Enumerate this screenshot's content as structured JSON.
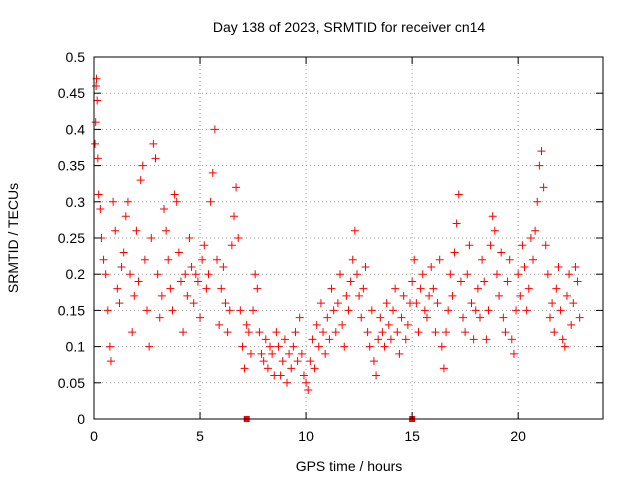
{
  "chart_data": {
    "type": "scatter",
    "title": "Day 138 of 2023, SRMTID for receiver cn14",
    "xlabel": "GPS time / hours",
    "ylabel": "SRMTID / TECUs",
    "xlim": [
      0,
      24
    ],
    "ylim": [
      0,
      0.5
    ],
    "x_ticks": [
      0,
      5,
      10,
      15,
      20
    ],
    "x_tick_labels": [
      "0",
      "5",
      "10",
      "15",
      "20"
    ],
    "y_ticks": [
      0,
      0.05,
      0.1,
      0.15,
      0.2,
      0.25,
      0.3,
      0.35,
      0.4,
      0.45,
      0.5
    ],
    "y_tick_labels": [
      "0",
      "0.05",
      "0.1",
      "0.15",
      "0.2",
      "0.25",
      "0.3",
      "0.35",
      "0.4",
      "0.45",
      "0.5"
    ],
    "grid": true,
    "marker": "+",
    "color": "#ff0000",
    "series": [
      {
        "name": "SRMTID",
        "points": [
          [
            0.05,
            0.38
          ],
          [
            0.08,
            0.41
          ],
          [
            0.1,
            0.46
          ],
          [
            0.12,
            0.47
          ],
          [
            0.15,
            0.44
          ],
          [
            0.18,
            0.36
          ],
          [
            0.22,
            0.31
          ],
          [
            0.3,
            0.29
          ],
          [
            0.35,
            0.25
          ],
          [
            0.45,
            0.22
          ],
          [
            0.55,
            0.2
          ],
          [
            0.65,
            0.15
          ],
          [
            0.75,
            0.1
          ],
          [
            0.8,
            0.08
          ],
          [
            0.9,
            0.3
          ],
          [
            1.0,
            0.26
          ],
          [
            1.1,
            0.18
          ],
          [
            1.2,
            0.16
          ],
          [
            1.3,
            0.21
          ],
          [
            1.4,
            0.23
          ],
          [
            1.5,
            0.28
          ],
          [
            1.6,
            0.3
          ],
          [
            1.7,
            0.2
          ],
          [
            1.8,
            0.12
          ],
          [
            1.9,
            0.17
          ],
          [
            2.0,
            0.26
          ],
          [
            2.1,
            0.19
          ],
          [
            2.2,
            0.33
          ],
          [
            2.3,
            0.35
          ],
          [
            2.4,
            0.22
          ],
          [
            2.5,
            0.15
          ],
          [
            2.6,
            0.1
          ],
          [
            2.7,
            0.25
          ],
          [
            2.8,
            0.38
          ],
          [
            2.9,
            0.36
          ],
          [
            3.0,
            0.2
          ],
          [
            3.1,
            0.14
          ],
          [
            3.2,
            0.17
          ],
          [
            3.3,
            0.29
          ],
          [
            3.4,
            0.26
          ],
          [
            3.5,
            0.22
          ],
          [
            3.6,
            0.18
          ],
          [
            3.7,
            0.15
          ],
          [
            3.8,
            0.31
          ],
          [
            3.9,
            0.3
          ],
          [
            4.0,
            0.23
          ],
          [
            4.1,
            0.19
          ],
          [
            4.2,
            0.12
          ],
          [
            4.3,
            0.2
          ],
          [
            4.4,
            0.17
          ],
          [
            4.5,
            0.25
          ],
          [
            4.6,
            0.21
          ],
          [
            4.7,
            0.16
          ],
          [
            4.8,
            0.2
          ],
          [
            4.9,
            0.19
          ],
          [
            5.0,
            0.14
          ],
          [
            5.1,
            0.22
          ],
          [
            5.2,
            0.24
          ],
          [
            5.3,
            0.18
          ],
          [
            5.4,
            0.2
          ],
          [
            5.5,
            0.3
          ],
          [
            5.6,
            0.34
          ],
          [
            5.7,
            0.4
          ],
          [
            5.8,
            0.22
          ],
          [
            5.9,
            0.13
          ],
          [
            6.0,
            0.18
          ],
          [
            6.1,
            0.21
          ],
          [
            6.2,
            0.16
          ],
          [
            6.3,
            0.12
          ],
          [
            6.4,
            0.15
          ],
          [
            6.5,
            0.24
          ],
          [
            6.6,
            0.28
          ],
          [
            6.7,
            0.32
          ],
          [
            6.8,
            0.25
          ],
          [
            6.9,
            0.15
          ],
          [
            7.0,
            0.1
          ],
          [
            7.1,
            0.07
          ],
          [
            7.2,
            0.13
          ],
          [
            7.3,
            0.12
          ],
          [
            7.4,
            0.09
          ],
          [
            7.5,
            0.15
          ],
          [
            7.6,
            0.2
          ],
          [
            7.7,
            0.18
          ],
          [
            7.8,
            0.12
          ],
          [
            7.9,
            0.09
          ],
          [
            8.0,
            0.08
          ],
          [
            8.1,
            0.11
          ],
          [
            8.2,
            0.07
          ],
          [
            8.3,
            0.1
          ],
          [
            8.4,
            0.09
          ],
          [
            8.5,
            0.06
          ],
          [
            8.6,
            0.12
          ],
          [
            8.7,
            0.1
          ],
          [
            8.8,
            0.06
          ],
          [
            8.9,
            0.08
          ],
          [
            9.0,
            0.11
          ],
          [
            9.1,
            0.05
          ],
          [
            9.2,
            0.09
          ],
          [
            9.3,
            0.07
          ],
          [
            9.4,
            0.1
          ],
          [
            9.5,
            0.12
          ],
          [
            9.6,
            0.08
          ],
          [
            9.7,
            0.14
          ],
          [
            9.8,
            0.09
          ],
          [
            9.9,
            0.06
          ],
          [
            10.0,
            0.05
          ],
          [
            10.1,
            0.04
          ],
          [
            10.2,
            0.08
          ],
          [
            10.3,
            0.11
          ],
          [
            10.4,
            0.07
          ],
          [
            10.5,
            0.13
          ],
          [
            10.6,
            0.1
          ],
          [
            10.7,
            0.16
          ],
          [
            10.8,
            0.12
          ],
          [
            10.9,
            0.09
          ],
          [
            11.0,
            0.14
          ],
          [
            11.1,
            0.11
          ],
          [
            11.2,
            0.18
          ],
          [
            11.3,
            0.15
          ],
          [
            11.4,
            0.12
          ],
          [
            11.5,
            0.16
          ],
          [
            11.6,
            0.2
          ],
          [
            11.7,
            0.13
          ],
          [
            11.8,
            0.1
          ],
          [
            11.9,
            0.17
          ],
          [
            12.0,
            0.15
          ],
          [
            12.1,
            0.19
          ],
          [
            12.2,
            0.22
          ],
          [
            12.3,
            0.26
          ],
          [
            12.4,
            0.2
          ],
          [
            12.5,
            0.17
          ],
          [
            12.6,
            0.14
          ],
          [
            12.7,
            0.18
          ],
          [
            12.8,
            0.21
          ],
          [
            12.9,
            0.12
          ],
          [
            13.0,
            0.1
          ],
          [
            13.1,
            0.15
          ],
          [
            13.2,
            0.08
          ],
          [
            13.3,
            0.06
          ],
          [
            13.4,
            0.11
          ],
          [
            13.5,
            0.14
          ],
          [
            13.6,
            0.12
          ],
          [
            13.7,
            0.1
          ],
          [
            13.8,
            0.16
          ],
          [
            13.9,
            0.13
          ],
          [
            14.0,
            0.11
          ],
          [
            14.1,
            0.15
          ],
          [
            14.2,
            0.18
          ],
          [
            14.3,
            0.12
          ],
          [
            14.4,
            0.09
          ],
          [
            14.5,
            0.14
          ],
          [
            14.6,
            0.17
          ],
          [
            14.7,
            0.11
          ],
          [
            14.8,
            0.13
          ],
          [
            14.9,
            0.16
          ],
          [
            15.0,
            0.19
          ],
          [
            15.1,
            0.22
          ],
          [
            15.2,
            0.16
          ],
          [
            15.3,
            0.12
          ],
          [
            15.4,
            0.18
          ],
          [
            15.5,
            0.2
          ],
          [
            15.6,
            0.15
          ],
          [
            15.7,
            0.14
          ],
          [
            15.8,
            0.17
          ],
          [
            15.9,
            0.21
          ],
          [
            16.0,
            0.18
          ],
          [
            16.1,
            0.12
          ],
          [
            16.2,
            0.16
          ],
          [
            16.3,
            0.22
          ],
          [
            16.4,
            0.1
          ],
          [
            16.5,
            0.07
          ],
          [
            16.6,
            0.12
          ],
          [
            16.7,
            0.15
          ],
          [
            16.8,
            0.2
          ],
          [
            16.9,
            0.17
          ],
          [
            17.0,
            0.23
          ],
          [
            17.1,
            0.27
          ],
          [
            17.2,
            0.31
          ],
          [
            17.3,
            0.19
          ],
          [
            17.4,
            0.14
          ],
          [
            17.5,
            0.12
          ],
          [
            17.6,
            0.2
          ],
          [
            17.7,
            0.24
          ],
          [
            17.8,
            0.16
          ],
          [
            17.9,
            0.11
          ],
          [
            18.0,
            0.15
          ],
          [
            18.1,
            0.18
          ],
          [
            18.2,
            0.14
          ],
          [
            18.3,
            0.22
          ],
          [
            18.4,
            0.19
          ],
          [
            18.5,
            0.11
          ],
          [
            18.6,
            0.15
          ],
          [
            18.7,
            0.24
          ],
          [
            18.8,
            0.28
          ],
          [
            18.9,
            0.26
          ],
          [
            19.0,
            0.2
          ],
          [
            19.1,
            0.17
          ],
          [
            19.2,
            0.23
          ],
          [
            19.3,
            0.14
          ],
          [
            19.4,
            0.12
          ],
          [
            19.5,
            0.19
          ],
          [
            19.6,
            0.22
          ],
          [
            19.7,
            0.11
          ],
          [
            19.8,
            0.09
          ],
          [
            19.9,
            0.15
          ],
          [
            20.0,
            0.2
          ],
          [
            20.1,
            0.17
          ],
          [
            20.2,
            0.24
          ],
          [
            20.3,
            0.21
          ],
          [
            20.4,
            0.15
          ],
          [
            20.5,
            0.18
          ],
          [
            20.6,
            0.25
          ],
          [
            20.7,
            0.22
          ],
          [
            20.8,
            0.26
          ],
          [
            20.9,
            0.3
          ],
          [
            21.0,
            0.35
          ],
          [
            21.1,
            0.37
          ],
          [
            21.2,
            0.32
          ],
          [
            21.3,
            0.24
          ],
          [
            21.4,
            0.2
          ],
          [
            21.5,
            0.14
          ],
          [
            21.6,
            0.16
          ],
          [
            21.7,
            0.12
          ],
          [
            21.8,
            0.18
          ],
          [
            21.9,
            0.21
          ],
          [
            22.0,
            0.15
          ],
          [
            22.1,
            0.11
          ],
          [
            22.2,
            0.1
          ],
          [
            22.3,
            0.17
          ],
          [
            22.4,
            0.2
          ],
          [
            22.5,
            0.13
          ],
          [
            22.6,
            0.16
          ],
          [
            22.7,
            0.21
          ],
          [
            22.8,
            0.19
          ],
          [
            22.9,
            0.14
          ]
        ]
      }
    ],
    "x_axis_markers": [
      7.2,
      15.0
    ]
  }
}
